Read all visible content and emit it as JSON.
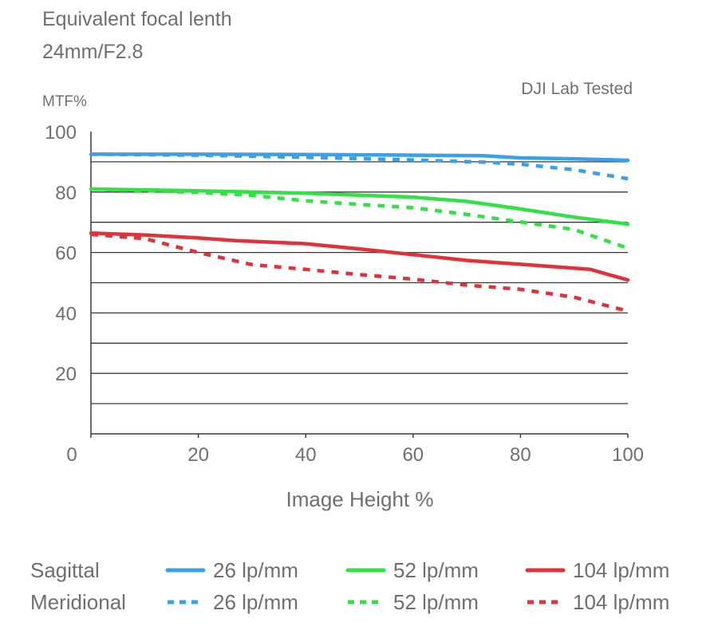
{
  "header": {
    "title_line1": "Equivalent focal lenth",
    "title_line2": "24mm/F2.8",
    "badge": "DJI Lab Tested"
  },
  "chart_data": {
    "type": "line",
    "ylabel": "MTF%",
    "xlabel": "Image Height %",
    "xlim": [
      0,
      100
    ],
    "ylim": [
      0,
      100
    ],
    "x_ticks": [
      0,
      20,
      40,
      60,
      80,
      100
    ],
    "y_ticks": [
      20,
      40,
      60,
      80,
      100
    ],
    "grid": "horizontal every 10",
    "legend_placement": "bottom",
    "legend_rows": [
      "Sagittal",
      "Meridional"
    ],
    "series": [
      {
        "name": "26 lp/mm",
        "group": "Sagittal",
        "style": "solid",
        "color": "#3aa0e8",
        "x": [
          0,
          20,
          40,
          60,
          73,
          80,
          90,
          100
        ],
        "y": [
          92.5,
          92.5,
          92.4,
          92.2,
          92.0,
          91.3,
          91.0,
          90.5
        ]
      },
      {
        "name": "26 lp/mm",
        "group": "Meridional",
        "style": "dashed",
        "color": "#3aa0e8",
        "x": [
          0,
          20,
          40,
          60,
          73,
          80,
          90,
          100
        ],
        "y": [
          92.5,
          92.2,
          91.5,
          90.6,
          89.9,
          89.2,
          87.4,
          84.4
        ]
      },
      {
        "name": "52 lp/mm",
        "group": "Sagittal",
        "style": "solid",
        "color": "#33e045",
        "x": [
          0,
          20,
          40,
          60,
          70,
          80,
          90,
          100
        ],
        "y": [
          81.0,
          80.4,
          79.6,
          78.3,
          76.9,
          74.4,
          71.7,
          69.4
        ]
      },
      {
        "name": "52 lp/mm",
        "group": "Meridional",
        "style": "dashed",
        "color": "#33e045",
        "x": [
          0,
          20,
          30,
          40,
          50,
          60,
          70,
          80,
          90,
          100
        ],
        "y": [
          81.0,
          79.9,
          78.9,
          77.1,
          75.9,
          74.8,
          72.6,
          70.1,
          67.6,
          61.4
        ]
      },
      {
        "name": "104 lp/mm",
        "group": "Sagittal",
        "style": "solid",
        "color": "#e0323a",
        "x": [
          0,
          10,
          20,
          27,
          40,
          50,
          60,
          70,
          80,
          93,
          100
        ],
        "y": [
          66.4,
          65.8,
          64.8,
          63.9,
          62.9,
          61.2,
          59.3,
          57.4,
          56.1,
          54.4,
          50.9
        ]
      },
      {
        "name": "104 lp/mm",
        "group": "Meridional",
        "style": "dashed",
        "color": "#e0323a",
        "x": [
          0,
          10,
          20,
          30,
          40,
          50,
          60,
          70,
          80,
          90,
          100
        ],
        "y": [
          66.0,
          64.6,
          60.0,
          56.0,
          54.4,
          52.7,
          51.2,
          49.2,
          47.8,
          45.2,
          40.6
        ]
      }
    ]
  }
}
